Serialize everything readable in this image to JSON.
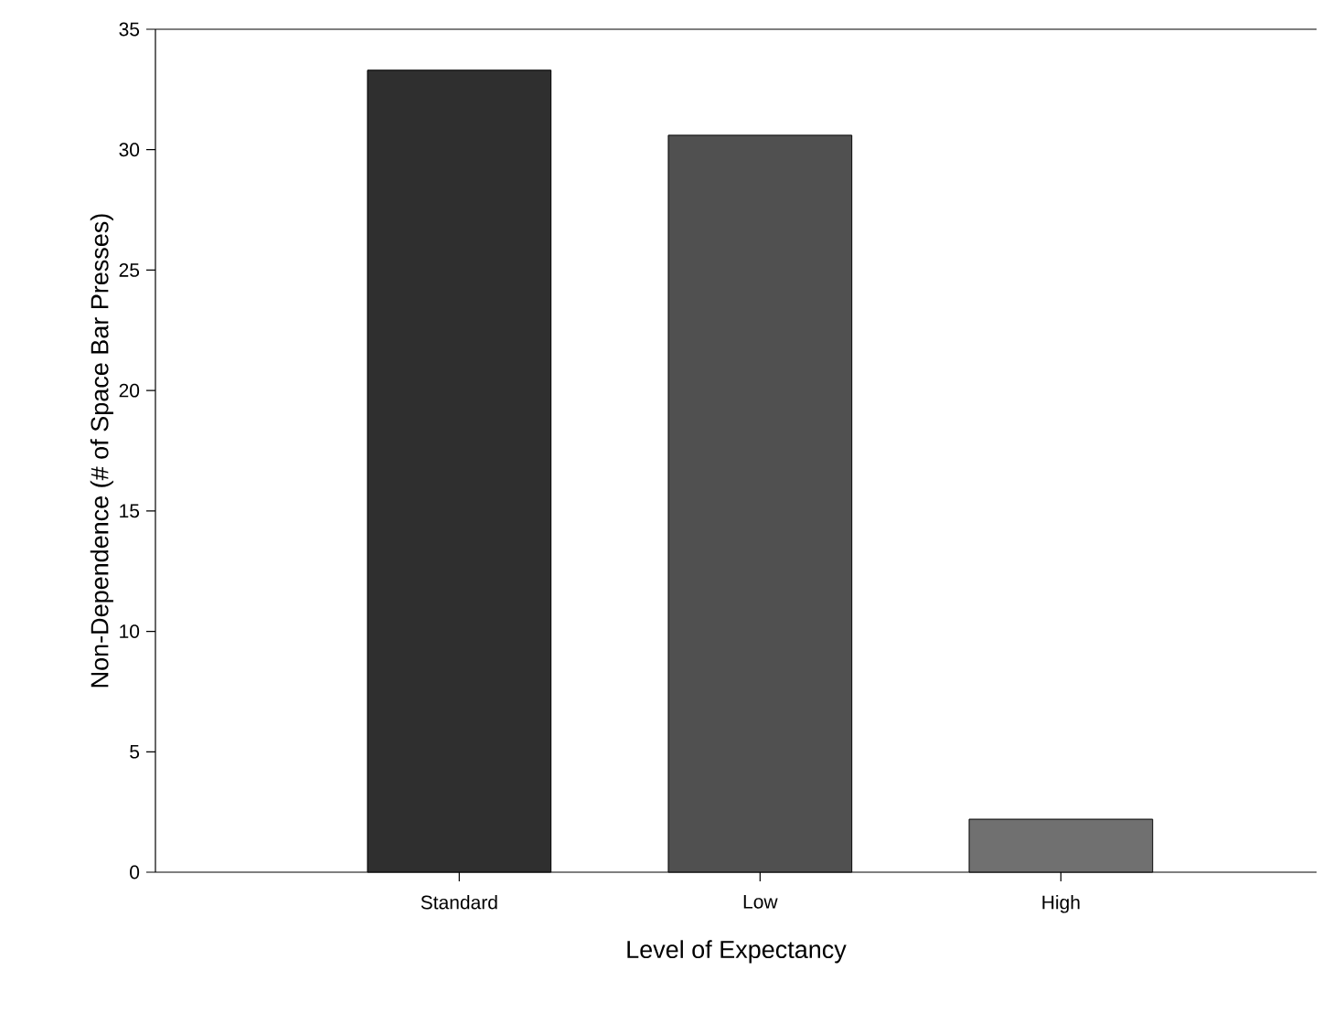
{
  "chart_data": {
    "type": "bar",
    "xlabel": "Level of Expectancy",
    "ylabel": "Non-Dependence (# of Space Bar Presses)",
    "categories": [
      "Standard",
      "Low",
      "High"
    ],
    "values": [
      33.3,
      30.6,
      2.2
    ],
    "colors": [
      "#2f2f2f",
      "#505050",
      "#707070"
    ],
    "ylim": [
      0,
      35
    ],
    "yticks": [
      0,
      5,
      10,
      15,
      20,
      25,
      30,
      35
    ],
    "grid": false
  }
}
